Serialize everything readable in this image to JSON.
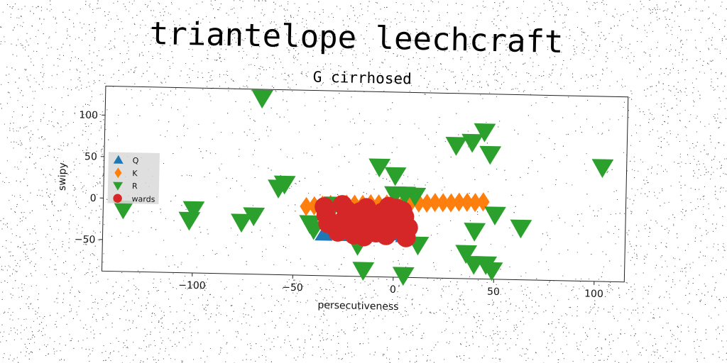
{
  "suptitle": "triantelope leechcraft",
  "chart_data": {
    "type": "scatter",
    "title": "G cirrhosed",
    "xlabel": "persecutiveness",
    "ylabel": "swipy",
    "xlim": [
      -145,
      115
    ],
    "ylim": [
      -88,
      135
    ],
    "xticks": [
      -100,
      -50,
      0,
      50,
      100
    ],
    "yticks": [
      100,
      50,
      0,
      -50
    ],
    "grid": false,
    "legend": {
      "position": "left"
    },
    "series": [
      {
        "name": "Q",
        "marker": "triangle-up",
        "color": "#1f77b4",
        "points": [
          [
            -35,
            -38
          ],
          [
            -30,
            -35
          ],
          [
            -28,
            -33
          ],
          [
            -25,
            -38
          ],
          [
            -22,
            -32
          ],
          [
            -18,
            -36
          ],
          [
            -15,
            -30
          ],
          [
            -12,
            -37
          ],
          [
            -10,
            -34
          ],
          [
            -5,
            -35
          ],
          [
            -3,
            -30
          ],
          [
            0,
            -36
          ],
          [
            2,
            -32
          ],
          [
            5,
            -38
          ],
          [
            -20,
            -28
          ],
          [
            -8,
            -30
          ]
        ]
      },
      {
        "name": "K",
        "marker": "diamond",
        "color": "#ff7f0e",
        "points": [
          [
            -44,
            -5
          ],
          [
            -40,
            -4
          ],
          [
            -36,
            -3
          ],
          [
            -32,
            -2
          ],
          [
            -28,
            -2
          ],
          [
            -24,
            -1
          ],
          [
            -20,
            -1
          ],
          [
            -16,
            -1
          ],
          [
            -12,
            0
          ],
          [
            -8,
            0
          ],
          [
            -4,
            0
          ],
          [
            0,
            1
          ],
          [
            4,
            1
          ],
          [
            8,
            2
          ],
          [
            12,
            2
          ],
          [
            16,
            2
          ],
          [
            20,
            3
          ],
          [
            24,
            3
          ],
          [
            28,
            3
          ],
          [
            32,
            4
          ],
          [
            36,
            4
          ],
          [
            40,
            4
          ],
          [
            44,
            5
          ]
        ]
      },
      {
        "name": "R",
        "marker": "triangle-down",
        "color": "#2ca02c",
        "points": [
          [
            -67,
            125
          ],
          [
            -55,
            22
          ],
          [
            -58,
            17
          ],
          [
            -100,
            -11
          ],
          [
            -102,
            -24
          ],
          [
            -76,
            -25
          ],
          [
            -70,
            -17
          ],
          [
            -135,
            -12
          ],
          [
            -42,
            -25
          ],
          [
            -40,
            -32
          ],
          [
            -30,
            -2
          ],
          [
            -8,
            45
          ],
          [
            0,
            35
          ],
          [
            5,
            12
          ],
          [
            10,
            11
          ],
          [
            0,
            12
          ],
          [
            -20,
            -10
          ],
          [
            -15,
            -80
          ],
          [
            5,
            -85
          ],
          [
            -18,
            -50
          ],
          [
            12,
            -48
          ],
          [
            30,
            73
          ],
          [
            38,
            77
          ],
          [
            44,
            90
          ],
          [
            47,
            63
          ],
          [
            50,
            -10
          ],
          [
            40,
            -30
          ],
          [
            36,
            -57
          ],
          [
            40,
            -70
          ],
          [
            46,
            -70
          ],
          [
            49,
            -77
          ],
          [
            63,
            -25
          ],
          [
            103,
            50
          ]
        ]
      },
      {
        "name": "wards",
        "marker": "circle",
        "color": "#d62728",
        "points": [
          [
            -35,
            -5
          ],
          [
            -34,
            -15
          ],
          [
            -33,
            -25
          ],
          [
            -30,
            -28
          ],
          [
            -28,
            -35
          ],
          [
            -25,
            -20
          ],
          [
            -24,
            -8
          ],
          [
            -22,
            -30
          ],
          [
            -20,
            -38
          ],
          [
            -18,
            -22
          ],
          [
            -17,
            -10
          ],
          [
            -16,
            -30
          ],
          [
            -15,
            -40
          ],
          [
            -14,
            -5
          ],
          [
            -12,
            -25
          ],
          [
            -10,
            -15
          ],
          [
            -9,
            -35
          ],
          [
            -8,
            -28
          ],
          [
            -6,
            -10
          ],
          [
            -5,
            -20
          ],
          [
            -4,
            -38
          ],
          [
            -3,
            -3
          ],
          [
            -2,
            -25
          ],
          [
            -1,
            -12
          ],
          [
            0,
            -30
          ],
          [
            1,
            -5
          ],
          [
            2,
            -18
          ],
          [
            3,
            -28
          ],
          [
            4,
            -8
          ],
          [
            5,
            -15
          ],
          [
            6,
            -40
          ],
          [
            7,
            -28
          ],
          [
            -26,
            -2
          ]
        ]
      }
    ]
  }
}
